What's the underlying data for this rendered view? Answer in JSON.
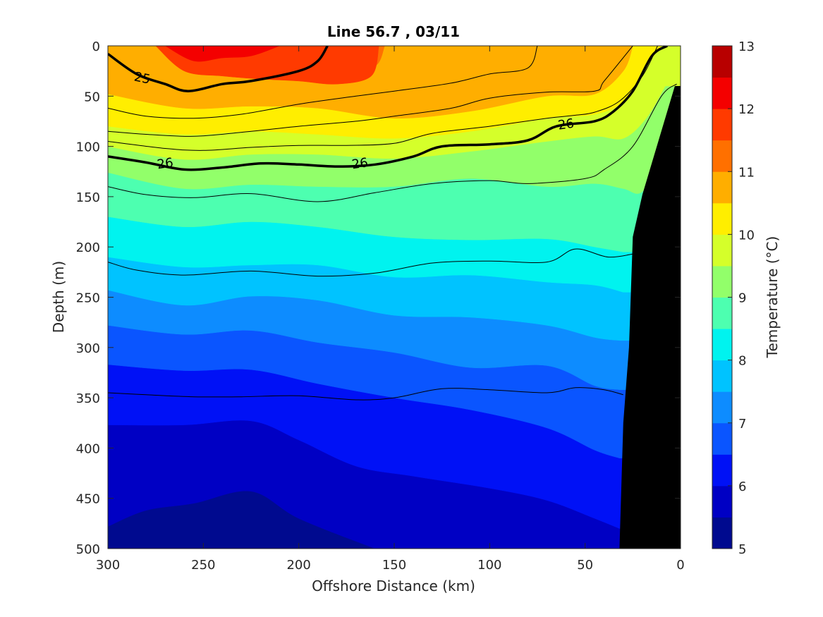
{
  "chart_data": {
    "type": "contourf",
    "title": "Line 56.7 , 03/11",
    "xlabel": "Offshore Distance (km)",
    "ylabel": "Depth (m)",
    "colorbar_label": "Temperature (°C)",
    "xlim": [
      300,
      0
    ],
    "ylim": [
      0,
      500
    ],
    "y_reversed": true,
    "x_ticks": [
      300,
      250,
      200,
      150,
      100,
      50,
      0
    ],
    "y_ticks": [
      0,
      50,
      100,
      150,
      200,
      250,
      300,
      350,
      400,
      450,
      500
    ],
    "colorbar_ticks": [
      5,
      6,
      7,
      8,
      9,
      10,
      11,
      12,
      13
    ],
    "colorbar_levels": [
      5,
      5.5,
      6,
      6.5,
      7,
      7.5,
      8,
      8.5,
      9,
      9.5,
      10,
      10.5,
      11,
      11.5,
      12,
      12.5,
      13
    ],
    "colorbar_colors": [
      "#000a8f",
      "#0000c4",
      "#0011f6",
      "#0a55ff",
      "#0d8cff",
      "#00c3ff",
      "#00f3ef",
      "#4dffb0",
      "#92ff6a",
      "#d5ff2a",
      "#ffee00",
      "#ffae00",
      "#ff7000",
      "#ff3a00",
      "#f40000",
      "#b80000"
    ],
    "temperature_bands": [
      {
        "level": 5.5,
        "depth": [
          [
            300,
            478
          ],
          [
            280,
            462
          ],
          [
            255,
            455
          ],
          [
            225,
            443
          ],
          [
            200,
            470
          ],
          [
            160,
            500
          ]
        ]
      },
      {
        "level": 6,
        "depth": [
          [
            300,
            377
          ],
          [
            260,
            377
          ],
          [
            225,
            373
          ],
          [
            200,
            392
          ],
          [
            170,
            418
          ],
          [
            140,
            428
          ],
          [
            100,
            440
          ],
          [
            70,
            452
          ],
          [
            45,
            470
          ],
          [
            32,
            480
          ]
        ]
      },
      {
        "level": 6.5,
        "depth": [
          [
            300,
            317
          ],
          [
            260,
            323
          ],
          [
            225,
            322
          ],
          [
            190,
            336
          ],
          [
            150,
            350
          ],
          [
            110,
            362
          ],
          [
            70,
            380
          ],
          [
            45,
            402
          ],
          [
            32,
            410
          ]
        ]
      },
      {
        "level": 7,
        "depth": [
          [
            300,
            278
          ],
          [
            260,
            287
          ],
          [
            225,
            283
          ],
          [
            190,
            295
          ],
          [
            150,
            305
          ],
          [
            110,
            320
          ],
          [
            70,
            318
          ],
          [
            45,
            338
          ],
          [
            32,
            342
          ]
        ]
      },
      {
        "level": 7.5,
        "depth": [
          [
            300,
            243
          ],
          [
            260,
            258
          ],
          [
            225,
            249
          ],
          [
            190,
            253
          ],
          [
            150,
            268
          ],
          [
            110,
            270
          ],
          [
            70,
            278
          ],
          [
            45,
            290
          ],
          [
            32,
            293
          ]
        ]
      },
      {
        "level": 8,
        "depth": [
          [
            300,
            210
          ],
          [
            260,
            220
          ],
          [
            225,
            218
          ],
          [
            190,
            218
          ],
          [
            150,
            230
          ],
          [
            110,
            228
          ],
          [
            70,
            235
          ],
          [
            45,
            238
          ],
          [
            30,
            245
          ]
        ]
      },
      {
        "level": 8.5,
        "depth": [
          [
            300,
            170
          ],
          [
            260,
            180
          ],
          [
            225,
            175
          ],
          [
            190,
            180
          ],
          [
            150,
            190
          ],
          [
            110,
            193
          ],
          [
            70,
            192
          ],
          [
            45,
            200
          ],
          [
            30,
            205
          ]
        ]
      },
      {
        "level": 9,
        "depth": [
          [
            300,
            126
          ],
          [
            260,
            142
          ],
          [
            225,
            138
          ],
          [
            190,
            140
          ],
          [
            150,
            140
          ],
          [
            110,
            132
          ],
          [
            70,
            140
          ],
          [
            45,
            137
          ],
          [
            30,
            142
          ],
          [
            20,
            145
          ],
          [
            8,
            110
          ]
        ]
      },
      {
        "level": 9.5,
        "depth": [
          [
            300,
            100
          ],
          [
            260,
            113
          ],
          [
            225,
            108
          ],
          [
            190,
            108
          ],
          [
            150,
            112
          ],
          [
            110,
            105
          ],
          [
            70,
            95
          ],
          [
            45,
            90
          ],
          [
            30,
            92
          ],
          [
            18,
            72
          ],
          [
            8,
            40
          ]
        ]
      },
      {
        "level": 10,
        "depth": [
          [
            300,
            80
          ],
          [
            260,
            88
          ],
          [
            225,
            85
          ],
          [
            190,
            88
          ],
          [
            150,
            92
          ],
          [
            110,
            85
          ],
          [
            70,
            72
          ],
          [
            45,
            68
          ],
          [
            30,
            55
          ],
          [
            18,
            20
          ],
          [
            10,
            0
          ]
        ]
      },
      {
        "level": 10.5,
        "depth": [
          [
            300,
            48
          ],
          [
            260,
            62
          ],
          [
            225,
            60
          ],
          [
            190,
            62
          ],
          [
            150,
            72
          ],
          [
            110,
            65
          ],
          [
            70,
            50
          ],
          [
            45,
            48
          ],
          [
            30,
            25
          ],
          [
            25,
            0
          ]
        ]
      },
      {
        "level": 11,
        "depth": [
          [
            300,
            0
          ],
          [
            270,
            0
          ],
          [
            250,
            8
          ],
          [
            225,
            5
          ],
          [
            200,
            12
          ],
          [
            175,
            18
          ],
          [
            160,
            20
          ],
          [
            155,
            0
          ]
        ]
      },
      {
        "level": 11.5,
        "depth": [
          [
            275,
            0
          ],
          [
            260,
            25
          ],
          [
            240,
            30
          ],
          [
            220,
            33
          ],
          [
            200,
            35
          ],
          [
            180,
            38
          ],
          [
            162,
            30
          ],
          [
            158,
            0
          ]
        ]
      },
      {
        "level": 12,
        "depth": [
          [
            270,
            0
          ],
          [
            255,
            15
          ],
          [
            240,
            12
          ],
          [
            225,
            10
          ],
          [
            210,
            0
          ]
        ]
      }
    ],
    "thin_contours": [
      {
        "points": [
          [
            300,
            62
          ],
          [
            280,
            70
          ],
          [
            255,
            72
          ],
          [
            230,
            68
          ],
          [
            200,
            58
          ],
          [
            170,
            50
          ],
          [
            150,
            45
          ],
          [
            120,
            37
          ],
          [
            100,
            28
          ],
          [
            80,
            22
          ],
          [
            75,
            0
          ]
        ]
      },
      {
        "points": [
          [
            300,
            85
          ],
          [
            280,
            88
          ],
          [
            255,
            90
          ],
          [
            230,
            86
          ],
          [
            200,
            80
          ],
          [
            170,
            75
          ],
          [
            150,
            70
          ],
          [
            120,
            62
          ],
          [
            100,
            52
          ],
          [
            70,
            46
          ],
          [
            45,
            45
          ],
          [
            40,
            35
          ],
          [
            25,
            0
          ]
        ]
      },
      {
        "points": [
          [
            300,
            95
          ],
          [
            270,
            102
          ],
          [
            250,
            104
          ],
          [
            225,
            101
          ],
          [
            200,
            99
          ],
          [
            175,
            99
          ],
          [
            150,
            97
          ],
          [
            130,
            87
          ],
          [
            100,
            80
          ],
          [
            70,
            72
          ],
          [
            55,
            69
          ],
          [
            45,
            66
          ],
          [
            32,
            55
          ],
          [
            20,
            30
          ],
          [
            12,
            0
          ]
        ]
      },
      {
        "points": [
          [
            300,
            140
          ],
          [
            280,
            148
          ],
          [
            255,
            151
          ],
          [
            225,
            147
          ],
          [
            190,
            155
          ],
          [
            160,
            146
          ],
          [
            130,
            137
          ],
          [
            100,
            134
          ],
          [
            80,
            137
          ],
          [
            50,
            132
          ],
          [
            40,
            123
          ],
          [
            25,
            100
          ],
          [
            10,
            50
          ],
          [
            2,
            38
          ]
        ]
      },
      {
        "points": [
          [
            300,
            215
          ],
          [
            285,
            223
          ],
          [
            260,
            228
          ],
          [
            225,
            224
          ],
          [
            190,
            229
          ],
          [
            160,
            226
          ],
          [
            130,
            216
          ],
          [
            100,
            214
          ],
          [
            70,
            215
          ],
          [
            55,
            202
          ],
          [
            38,
            210
          ],
          [
            25,
            207
          ]
        ]
      },
      {
        "points": [
          [
            300,
            345
          ],
          [
            280,
            347
          ],
          [
            255,
            349
          ],
          [
            230,
            349
          ],
          [
            200,
            348
          ],
          [
            170,
            352
          ],
          [
            150,
            350
          ],
          [
            125,
            341
          ],
          [
            100,
            342
          ],
          [
            70,
            345
          ],
          [
            55,
            340
          ],
          [
            40,
            342
          ],
          [
            30,
            347
          ]
        ]
      }
    ],
    "thick_contours": [
      {
        "label": "25",
        "label_pos": [
          282,
          32
        ],
        "points": [
          [
            300,
            8
          ],
          [
            285,
            28
          ],
          [
            270,
            38
          ],
          [
            258,
            45
          ],
          [
            240,
            38
          ],
          [
            225,
            35
          ],
          [
            200,
            25
          ],
          [
            190,
            15
          ],
          [
            185,
            0
          ]
        ]
      },
      {
        "label": "26",
        "label_pos": [
          60,
          78
        ],
        "points": [
          [
            300,
            110
          ],
          [
            280,
            116
          ],
          [
            260,
            123
          ],
          [
            240,
            121
          ],
          [
            220,
            117
          ],
          [
            200,
            118
          ],
          [
            180,
            120
          ],
          [
            160,
            118
          ],
          [
            140,
            110
          ],
          [
            125,
            100
          ],
          [
            100,
            98
          ],
          [
            80,
            94
          ],
          [
            65,
            80
          ],
          [
            45,
            75
          ],
          [
            35,
            65
          ],
          [
            25,
            45
          ],
          [
            15,
            10
          ],
          [
            7,
            0
          ]
        ]
      },
      {
        "label": "26",
        "label_pos": [
          270,
          117
        ],
        "points": []
      },
      {
        "label": "26",
        "label_pos": [
          168,
          117
        ],
        "points": []
      }
    ],
    "land_mask": [
      [
        32,
        500
      ],
      [
        30,
        375
      ],
      [
        27,
        300
      ],
      [
        25,
        190
      ],
      [
        20,
        148
      ],
      [
        3,
        40
      ],
      [
        0,
        40
      ],
      [
        0,
        500
      ]
    ]
  }
}
